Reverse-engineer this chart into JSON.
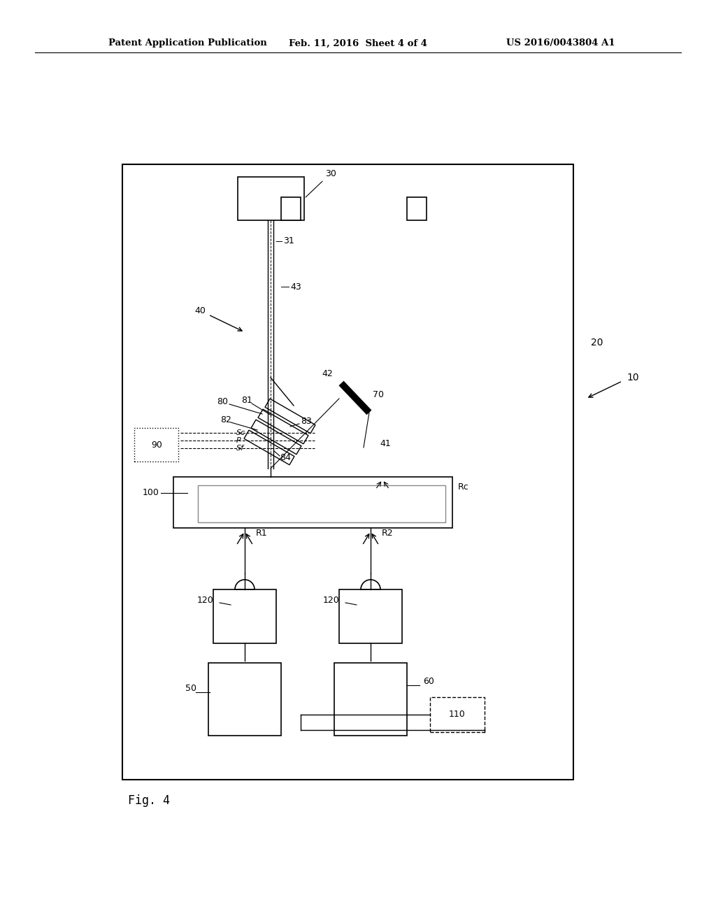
{
  "bg_color": "#ffffff",
  "header_left": "Patent Application Publication",
  "header_mid": "Feb. 11, 2016  Sheet 4 of 4",
  "header_right": "US 2016/0043804 A1",
  "fig_label": "Fig. 4"
}
